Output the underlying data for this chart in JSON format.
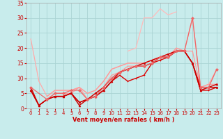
{
  "bg_color": "#c8ecec",
  "grid_color": "#aad4d4",
  "xlabel": "Vent moyen/en rafales ( km/h )",
  "xlim": [
    -0.5,
    23.5
  ],
  "ylim": [
    0,
    35
  ],
  "xticks": [
    0,
    1,
    2,
    3,
    4,
    5,
    6,
    7,
    8,
    9,
    10,
    11,
    12,
    13,
    14,
    15,
    16,
    17,
    18,
    19,
    20,
    21,
    22,
    23
  ],
  "yticks": [
    0,
    5,
    10,
    15,
    20,
    25,
    30,
    35
  ],
  "lines": [
    {
      "x": [
        0,
        1,
        2,
        3,
        4,
        5,
        6,
        7,
        8,
        9,
        10,
        11,
        12,
        13,
        14,
        15,
        16,
        17,
        18,
        19,
        20,
        21,
        22,
        23
      ],
      "y": [
        23,
        9,
        4,
        6,
        6,
        6,
        7,
        5,
        6,
        9,
        13,
        14,
        15,
        15,
        15,
        16,
        17,
        17,
        20,
        19,
        30,
        7,
        8,
        13
      ],
      "color": "#ffaaaa",
      "lw": 0.9
    },
    {
      "x": [
        0,
        1,
        2,
        3,
        4,
        5,
        6,
        7,
        8,
        9,
        10,
        11,
        12,
        13,
        14,
        15,
        16,
        17,
        18,
        19,
        20,
        21,
        22,
        23
      ],
      "y": [
        7,
        null,
        4,
        6,
        6,
        6,
        7,
        5,
        6,
        9,
        13,
        14,
        15,
        15,
        15,
        16,
        17,
        17,
        20,
        19,
        19,
        7,
        8,
        8
      ],
      "color": "#ff9999",
      "lw": 0.9
    },
    {
      "x": [
        0,
        1,
        2,
        3,
        4,
        5,
        6,
        7,
        8,
        9,
        10,
        11,
        12,
        13,
        14,
        15,
        16,
        17,
        18,
        19,
        20,
        21,
        22,
        23
      ],
      "y": [
        6,
        null,
        3,
        5,
        5,
        5,
        7,
        3,
        5,
        7,
        11,
        12,
        14,
        14,
        15,
        16,
        17,
        18,
        19,
        19,
        15,
        6,
        7,
        8
      ],
      "color": "#ff9999",
      "lw": 0.9
    },
    {
      "x": [
        12,
        13,
        14,
        15,
        16,
        17,
        18
      ],
      "y": [
        19,
        20,
        30,
        30,
        33,
        31,
        32
      ],
      "color": "#ffbbbb",
      "lw": 0.9
    },
    {
      "x": [
        0,
        1,
        2,
        3,
        4,
        5,
        6,
        7,
        8,
        9,
        10,
        11,
        12,
        13,
        14,
        15,
        16,
        17,
        18,
        19,
        20,
        21,
        22,
        23
      ],
      "y": [
        6,
        1,
        3,
        4,
        4,
        5,
        2,
        3,
        4,
        6,
        9,
        11,
        9,
        10,
        11,
        15,
        16,
        17,
        19,
        19,
        15,
        6,
        6,
        7
      ],
      "color": "#dd0000",
      "lw": 1.0
    },
    {
      "x": [
        0,
        1,
        2,
        3,
        4,
        5,
        6,
        7,
        8,
        9,
        10,
        11,
        12,
        13,
        14,
        15,
        16,
        17,
        18,
        19,
        20,
        21,
        22,
        23
      ],
      "y": [
        6,
        1,
        3,
        4,
        4,
        5,
        1,
        3,
        4,
        6,
        9,
        12,
        13,
        14,
        14,
        15,
        17,
        17,
        19,
        19,
        15,
        6,
        7,
        8
      ],
      "color": "#cc0000",
      "lw": 1.0
    },
    {
      "x": [
        0,
        1,
        2,
        3,
        4,
        5,
        6,
        7,
        8,
        9,
        10,
        11,
        12,
        13,
        14,
        15,
        16,
        17,
        18,
        19,
        20,
        21,
        22,
        23
      ],
      "y": [
        7,
        1,
        3,
        4,
        4,
        5,
        2,
        3,
        5,
        7,
        10,
        12,
        13,
        14,
        15,
        16,
        17,
        18,
        19,
        19,
        15,
        7,
        7,
        7
      ],
      "color": "#cc0000",
      "lw": 1.0
    },
    {
      "x": [
        0,
        2,
        3,
        4,
        5,
        6,
        7,
        8,
        9,
        10,
        11,
        12,
        13,
        14,
        15,
        16,
        17,
        18,
        19,
        20,
        21,
        22,
        23
      ],
      "y": [
        7,
        3,
        5,
        5,
        6,
        6,
        3,
        4,
        7,
        10,
        12,
        13,
        14,
        14,
        15,
        17,
        17,
        19,
        19,
        30,
        7,
        7,
        13
      ],
      "color": "#ee6666",
      "lw": 0.9
    }
  ]
}
